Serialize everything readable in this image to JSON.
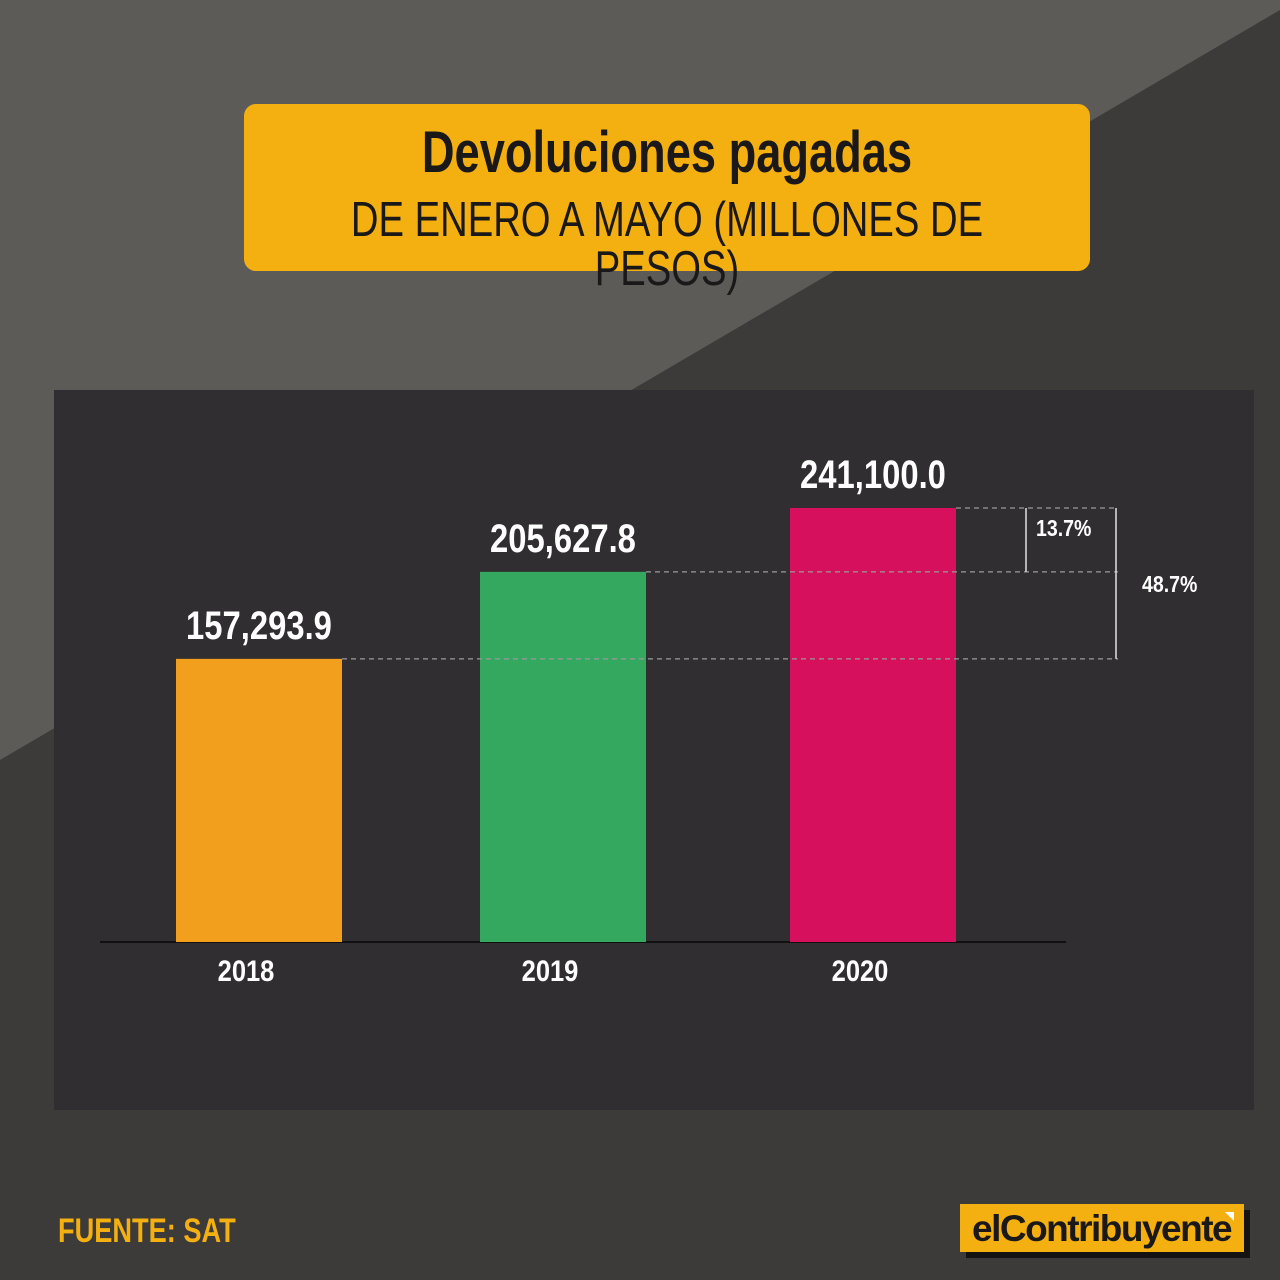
{
  "title": {
    "main": "Devoluciones pagadas",
    "sub": "DE ENERO A MAYO (MILLONES DE PESOS)"
  },
  "source": "FUENTE: SAT",
  "brand": "elContribuyente",
  "colors": {
    "background": "#3d3a3a",
    "background_light": "#5c5b57",
    "panel": "#302e31",
    "accent": "#f4b011"
  },
  "chart_data": {
    "type": "bar",
    "categories": [
      "2018",
      "2019",
      "2020"
    ],
    "values": [
      157293.9,
      205627.8,
      241100.0
    ],
    "value_labels": [
      "157,293.9",
      "205,627.8",
      "241,100.0"
    ],
    "bar_colors": [
      "#f39f1e",
      "#34a85e",
      "#d6105d"
    ],
    "annotations": [
      {
        "text": "13.7%",
        "from": "2019",
        "to": "2020"
      },
      {
        "text": "48.7%",
        "from": "2018",
        "to": "2020"
      }
    ],
    "title": "",
    "xlabel": "",
    "ylabel": "",
    "grid": false,
    "legend": "none"
  }
}
